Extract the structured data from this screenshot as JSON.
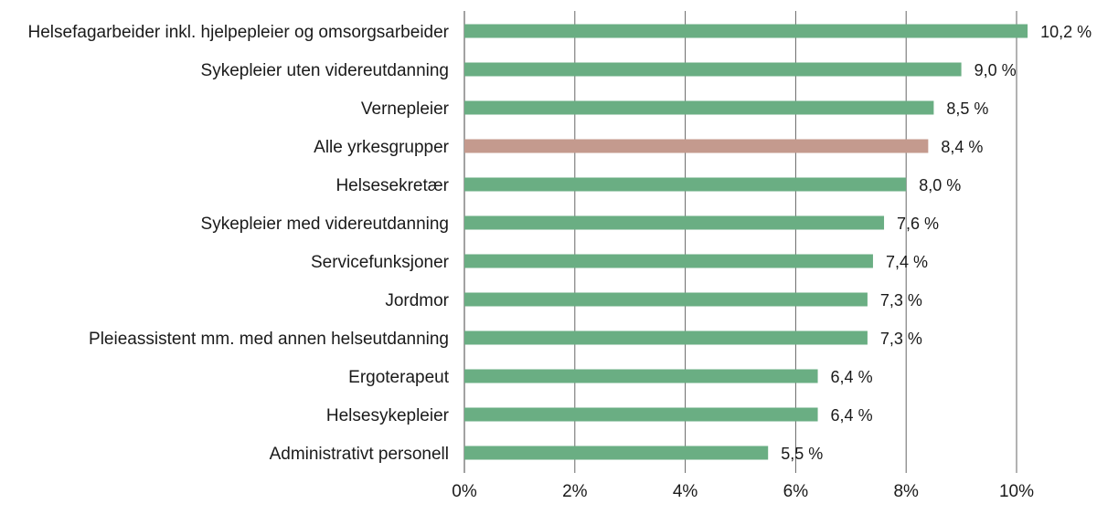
{
  "chart_data": {
    "type": "bar",
    "orientation": "horizontal",
    "title": "",
    "xlabel": "",
    "ylabel": "",
    "xlim": [
      0,
      10
    ],
    "x_ticks": [
      0,
      2,
      4,
      6,
      8,
      10
    ],
    "x_tick_labels": [
      "0%",
      "2%",
      "4%",
      "6%",
      "8%",
      "10%"
    ],
    "grid": "vertical",
    "categories": [
      "Helsefagarbeider inkl. hjelpepleier og omsorgsarbeider",
      "Sykepleier uten videreutdanning",
      "Vernepleier",
      "Alle yrkesgrupper",
      "Helsesekretær",
      "Sykepleier med videreutdanning",
      "Servicefunksjoner",
      "Jordmor",
      "Pleieassistent mm. med annen helseutdanning",
      "Ergoterapeut",
      "Helsesykepleier",
      "Administrativt personell"
    ],
    "values": [
      10.2,
      9.0,
      8.5,
      8.4,
      8.0,
      7.6,
      7.4,
      7.3,
      7.3,
      6.4,
      6.4,
      5.5
    ],
    "value_labels": [
      "10,2 %",
      "9,0 %",
      "8,5 %",
      "8,4 %",
      "8,0 %",
      "7,6 %",
      "7,4 %",
      "7,3 %",
      "7,3 %",
      "6,4 %",
      "6,4 %",
      "5,5 %"
    ],
    "highlight_category": "Alle yrkesgrupper",
    "colors": {
      "bar": "#6aae83",
      "highlight": "#c49a8e",
      "grid": "#666666"
    }
  }
}
